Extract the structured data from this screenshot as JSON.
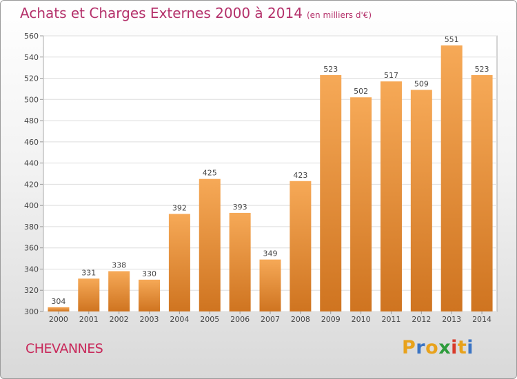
{
  "header": {
    "title": "Achats et Charges Externes 2000 à 2014",
    "subtitle": "(en milliers d'€)"
  },
  "footer": {
    "place": "CHEVANNES"
  },
  "logo": {
    "letters": [
      "P",
      "r",
      "o",
      "x",
      "i",
      "t",
      "i"
    ],
    "colors": [
      "#e8a21c",
      "#3a74c4",
      "#e8a21c",
      "#2e9c3c",
      "#d83a2a",
      "#e8a21c",
      "#3a74c4"
    ]
  },
  "colors": {
    "title": "#b4306a",
    "bar_light": "#f6a957",
    "bar_dark": "#cf7420"
  },
  "chart_data": {
    "type": "bar",
    "title": "Achats et Charges Externes 2000 à 2014",
    "subtitle": "(en milliers d'€)",
    "categories": [
      "2000",
      "2001",
      "2002",
      "2003",
      "2004",
      "2005",
      "2006",
      "2007",
      "2008",
      "2009",
      "2010",
      "2011",
      "2012",
      "2013",
      "2014"
    ],
    "values": [
      304,
      331,
      338,
      330,
      392,
      425,
      393,
      349,
      423,
      523,
      502,
      517,
      509,
      551,
      523
    ],
    "data_labels": [
      "304",
      "331",
      "338",
      "330",
      "392",
      "425",
      "393",
      "349",
      "423",
      "523",
      "502",
      "517",
      "509",
      "551",
      "523"
    ],
    "yticks": [
      "300",
      "320",
      "340",
      "360",
      "380",
      "400",
      "420",
      "440",
      "460",
      "480",
      "500",
      "520",
      "540",
      "560"
    ],
    "ylim": [
      300,
      560
    ],
    "grid": true,
    "xlabel": "",
    "ylabel": ""
  }
}
